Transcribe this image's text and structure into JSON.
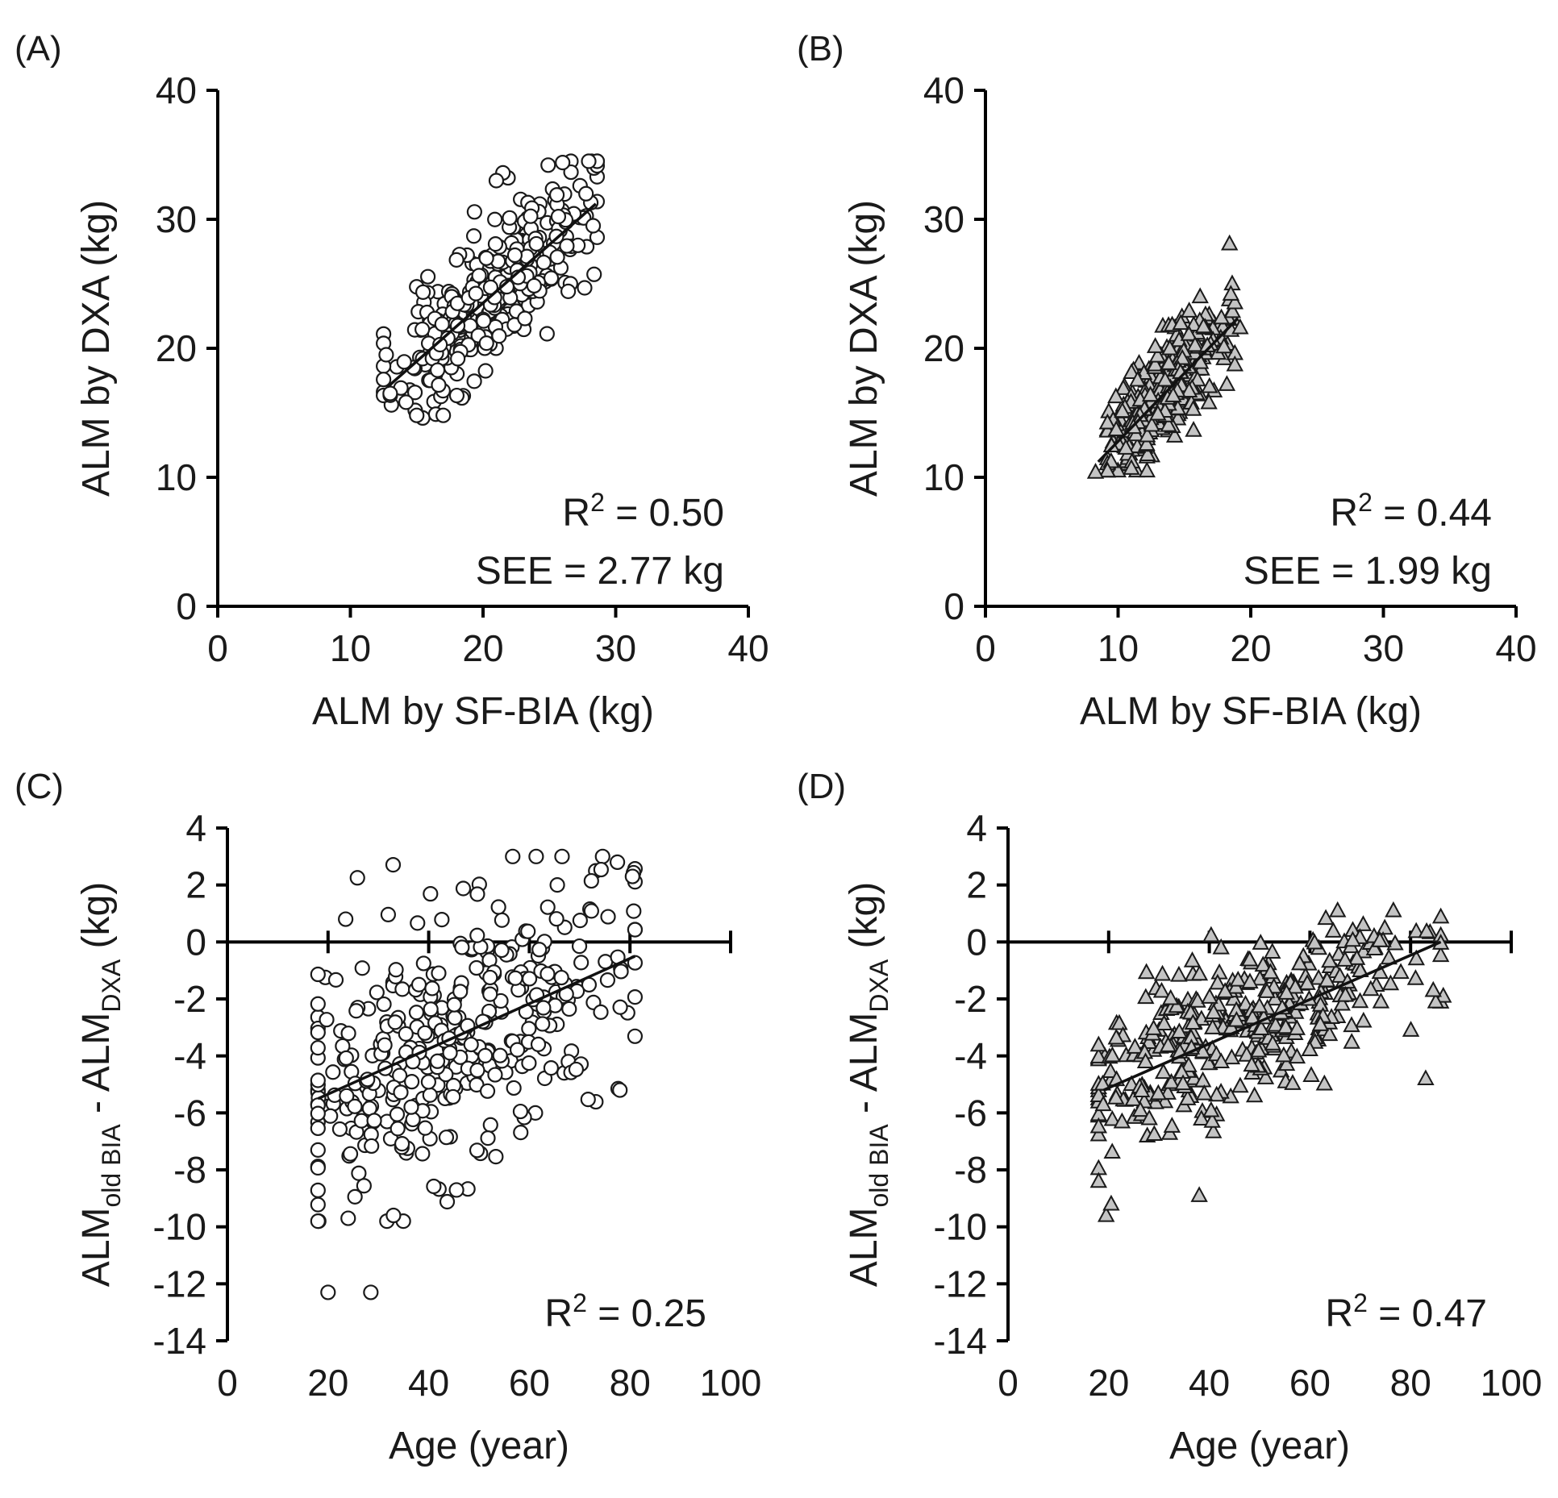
{
  "figure": {
    "panels": [
      "A",
      "B",
      "C",
      "D"
    ]
  },
  "chart_data": [
    {
      "id": "A",
      "panel_label": "(A)",
      "type": "scatter",
      "marker": "circle",
      "xlabel": "ALM by SF-BIA (kg)",
      "ylabel": "ALM by DXA (kg)",
      "xlim": [
        0,
        40
      ],
      "ylim": [
        0,
        40
      ],
      "xticks": [
        "0",
        "10",
        "20",
        "30",
        "40"
      ],
      "yticks": [
        "0",
        "10",
        "20",
        "30",
        "40"
      ],
      "x_axis_at_y": 0,
      "fit": {
        "x": [
          12.8,
          28.5
        ],
        "y": [
          17.0,
          31.2
        ]
      },
      "annotation_r2": "= 0.50",
      "annotation_see": "SEE = 2.77 kg",
      "cloud": {
        "n": 340,
        "seed": 11,
        "x_mean": 20.5,
        "x_sd": 3.6,
        "x_min": 12.5,
        "x_max": 28.6,
        "intercept": 5.4,
        "slope": 0.9,
        "y_sd": 2.6,
        "y_min": 14.6,
        "y_max": 34.5
      },
      "extra_points": [
        [
          26,
          34.4
        ],
        [
          21.5,
          33.6
        ],
        [
          21,
          33
        ],
        [
          17,
          14.8
        ],
        [
          15,
          14.8
        ],
        [
          28.3,
          29.5
        ],
        [
          12.7,
          19.5
        ],
        [
          13,
          16.5
        ]
      ]
    },
    {
      "id": "B",
      "panel_label": "(B)",
      "type": "scatter",
      "marker": "triangle",
      "xlabel": "ALM by SF-BIA (kg)",
      "ylabel": "ALM by DXA (kg)",
      "xlim": [
        0,
        40
      ],
      "ylim": [
        0,
        40
      ],
      "xticks": [
        "0",
        "10",
        "20",
        "30",
        "40"
      ],
      "yticks": [
        "0",
        "10",
        "20",
        "30",
        "40"
      ],
      "x_axis_at_y": 0,
      "fit": {
        "x": [
          8.5,
          19.0
        ],
        "y": [
          11.2,
          22.3
        ]
      },
      "annotation_r2": "= 0.44",
      "annotation_see": "SEE = 1.99 kg",
      "cloud": {
        "n": 330,
        "seed": 23,
        "x_mean": 13.4,
        "x_sd": 2.2,
        "x_min": 9.2,
        "x_max": 18.8,
        "intercept": 2.2,
        "slope": 1.06,
        "y_sd": 2.1,
        "y_min": 10.5,
        "y_max": 24.0
      },
      "extra_points": [
        [
          8.3,
          10.4
        ],
        [
          18.4,
          28.1
        ],
        [
          18.6,
          25.0
        ],
        [
          18.5,
          24.2
        ],
        [
          19.2,
          21.6
        ],
        [
          18.2,
          17.2
        ],
        [
          11.0,
          10.7
        ]
      ]
    },
    {
      "id": "C",
      "panel_label": "(C)",
      "type": "scatter",
      "marker": "circle",
      "xlabel": "Age (year)",
      "ylabel_main": "ALM",
      "ylabel_sub1": "old BIA",
      "ylabel_mid": " - ALM",
      "ylabel_sub2": "DXA",
      "ylabel_unit": " (kg)",
      "xlim": [
        0,
        100
      ],
      "ylim": [
        -14,
        4
      ],
      "xticks": [
        "0",
        "20",
        "40",
        "60",
        "80",
        "100"
      ],
      "yticks": [
        "-14",
        "-12",
        "-10",
        "-8",
        "-6",
        "-4",
        "-2",
        "0",
        "2",
        "4"
      ],
      "x_axis_at_y": 0,
      "fit": {
        "x": [
          18.0,
          81.0
        ],
        "y": [
          -5.5,
          -0.5
        ]
      },
      "annotation_r2": "= 0.25",
      "cloud": {
        "n": 360,
        "seed": 37,
        "x_mean": 47,
        "x_sd": 18,
        "x_min": 18,
        "x_max": 81,
        "intercept": -6.9,
        "slope": 0.078,
        "y_sd": 2.3,
        "y_min": -9.8,
        "y_max": 3.0
      },
      "extra_points": [
        [
          20.0,
          -12.3
        ],
        [
          28.5,
          -12.3
        ],
        [
          66.5,
          3.0
        ],
        [
          77.5,
          2.8
        ],
        [
          80.5,
          2.3
        ],
        [
          24.0,
          -9.7
        ],
        [
          33.0,
          -9.6
        ],
        [
          78.0,
          -5.2
        ],
        [
          23.5,
          0.8
        ]
      ]
    },
    {
      "id": "D",
      "panel_label": "(D)",
      "type": "scatter",
      "marker": "triangle",
      "xlabel": "Age (year)",
      "ylabel_main": "ALM",
      "ylabel_sub1": "old BIA",
      "ylabel_mid": " - ALM",
      "ylabel_sub2": "DXA",
      "ylabel_unit": " (kg)",
      "xlim": [
        0,
        100
      ],
      "ylim": [
        -14,
        4
      ],
      "xticks": [
        "0",
        "20",
        "40",
        "60",
        "80",
        "100"
      ],
      "yticks": [
        "-14",
        "-12",
        "-10",
        "-8",
        "-6",
        "-4",
        "-2",
        "0",
        "2",
        "4"
      ],
      "x_axis_at_y": 0,
      "fit": {
        "x": [
          19.0,
          86.0
        ],
        "y": [
          -5.2,
          0.0
        ]
      },
      "annotation_r2": "= 0.47",
      "cloud": {
        "n": 390,
        "seed": 51,
        "x_mean": 45,
        "x_sd": 17,
        "x_min": 18,
        "x_max": 86,
        "intercept": -6.6,
        "slope": 0.075,
        "y_sd": 1.3,
        "y_min": -9.6,
        "y_max": 1.1
      },
      "extra_points": [
        [
          65.5,
          1.1
        ],
        [
          38.0,
          -8.9
        ],
        [
          83.0,
          -4.8
        ],
        [
          86.5,
          -1.9
        ],
        [
          85.0,
          -2.1
        ],
        [
          84.5,
          -1.7
        ],
        [
          19.5,
          -9.6
        ],
        [
          20.5,
          -9.2
        ],
        [
          18.0,
          -8.4
        ]
      ]
    }
  ]
}
